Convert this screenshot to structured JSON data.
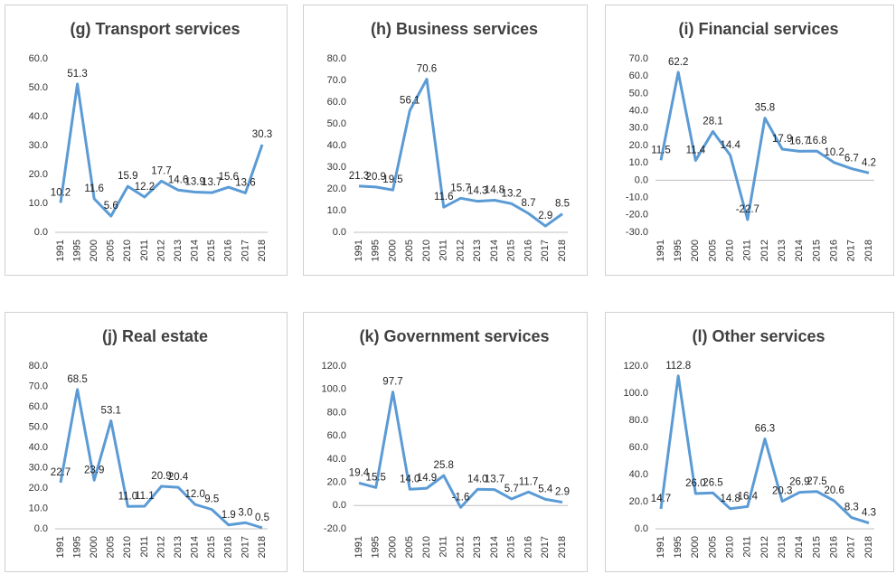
{
  "chart_data": [
    {
      "type": "line",
      "title": "(g) Transport services",
      "categories": [
        "1991",
        "1995",
        "2000",
        "2005",
        "2010",
        "2011",
        "2012",
        "2013",
        "2014",
        "2015",
        "2016",
        "2017",
        "2018"
      ],
      "values": [
        10.2,
        51.3,
        11.6,
        5.6,
        15.9,
        12.2,
        17.7,
        14.6,
        13.9,
        13.7,
        15.6,
        13.6,
        30.3
      ],
      "color": "#5b9bd5",
      "grid": false,
      "ylim": [
        0,
        60
      ],
      "yticks": [
        {
          "value": 0,
          "label": "0.0"
        },
        {
          "value": 10,
          "label": "10.0"
        },
        {
          "value": 20,
          "label": "20.0"
        },
        {
          "value": 30,
          "label": "30.0"
        },
        {
          "value": 40,
          "label": "40.0"
        },
        {
          "value": 50,
          "label": "50.0"
        },
        {
          "value": 60,
          "label": "60.0"
        }
      ]
    },
    {
      "type": "line",
      "title": "(h) Business services",
      "categories": [
        "1991",
        "1995",
        "2000",
        "2005",
        "2010",
        "2011",
        "2012",
        "2013",
        "2014",
        "2015",
        "2016",
        "2017",
        "2018"
      ],
      "values": [
        21.3,
        20.9,
        19.5,
        56.1,
        70.6,
        11.6,
        15.7,
        14.3,
        14.8,
        13.2,
        8.7,
        2.9,
        8.5
      ],
      "color": "#5b9bd5",
      "grid": false,
      "ylim": [
        0,
        80
      ],
      "yticks": [
        {
          "value": 0,
          "label": "0.0"
        },
        {
          "value": 10,
          "label": "10.0"
        },
        {
          "value": 20,
          "label": "20.0"
        },
        {
          "value": 30,
          "label": "30.0"
        },
        {
          "value": 40,
          "label": "40.0"
        },
        {
          "value": 50,
          "label": "50.0"
        },
        {
          "value": 60,
          "label": "60.0"
        },
        {
          "value": 70,
          "label": "70.0"
        },
        {
          "value": 80,
          "label": "80.0"
        }
      ]
    },
    {
      "type": "line",
      "title": "(i) Financial services",
      "categories": [
        "1991",
        "1995",
        "2000",
        "2005",
        "2010",
        "2011",
        "2012",
        "2013",
        "2014",
        "2015",
        "2016",
        "2017",
        "2018"
      ],
      "values": [
        11.5,
        62.2,
        11.4,
        28.1,
        14.4,
        -22.7,
        35.8,
        17.9,
        16.7,
        16.8,
        10.2,
        6.7,
        4.2
      ],
      "color": "#5b9bd5",
      "grid": false,
      "ylim": [
        -30,
        70
      ],
      "yticks": [
        {
          "value": -30,
          "label": "-30.0"
        },
        {
          "value": -20,
          "label": "-20.0"
        },
        {
          "value": -10,
          "label": "-10.0"
        },
        {
          "value": 0,
          "label": "0.0"
        },
        {
          "value": 10,
          "label": "10.0"
        },
        {
          "value": 20,
          "label": "20.0"
        },
        {
          "value": 30,
          "label": "30.0"
        },
        {
          "value": 40,
          "label": "40.0"
        },
        {
          "value": 50,
          "label": "50.0"
        },
        {
          "value": 60,
          "label": "60.0"
        },
        {
          "value": 70,
          "label": "70.0"
        }
      ]
    },
    {
      "type": "line",
      "title": "(j) Real estate",
      "categories": [
        "1991",
        "1995",
        "2000",
        "2005",
        "2010",
        "2011",
        "2012",
        "2013",
        "2014",
        "2015",
        "2016",
        "2017",
        "2018"
      ],
      "values": [
        22.7,
        68.5,
        23.9,
        53.1,
        11.0,
        11.1,
        20.9,
        20.4,
        12.0,
        9.5,
        1.9,
        3.0,
        0.5
      ],
      "value_labels": [
        "22.7",
        "68.5",
        "23.9",
        "53.1",
        "11.0",
        "11.1",
        "20.9",
        "20.4",
        "12.0",
        "9.5",
        "1.9",
        "3.0",
        "0.5"
      ],
      "color": "#5b9bd5",
      "grid": false,
      "ylim": [
        0,
        80
      ],
      "yticks": [
        {
          "value": 0,
          "label": "0.0"
        },
        {
          "value": 10,
          "label": "10.0"
        },
        {
          "value": 20,
          "label": "20.0"
        },
        {
          "value": 30,
          "label": "30.0"
        },
        {
          "value": 40,
          "label": "40.0"
        },
        {
          "value": 50,
          "label": "50.0"
        },
        {
          "value": 60,
          "label": "60.0"
        },
        {
          "value": 70,
          "label": "70.0"
        },
        {
          "value": 80,
          "label": "80.0"
        }
      ]
    },
    {
      "type": "line",
      "title": "(k) Government services",
      "categories": [
        "1991",
        "1995",
        "2000",
        "2005",
        "2010",
        "2011",
        "2012",
        "2013",
        "2014",
        "2015",
        "2016",
        "2017",
        "2018"
      ],
      "values": [
        19.4,
        15.5,
        97.7,
        14.0,
        14.9,
        25.8,
        -1.6,
        14.0,
        13.7,
        5.7,
        11.7,
        5.4,
        2.9
      ],
      "value_labels": [
        "19.4",
        "15.5",
        "97.7",
        "14.0",
        "14.9",
        "25.8",
        "-1.6",
        "14.0",
        "13.7",
        "5.7",
        "11.7",
        "5.4",
        "2.9"
      ],
      "color": "#5b9bd5",
      "grid": false,
      "ylim": [
        -20,
        120
      ],
      "yticks": [
        {
          "value": -20,
          "label": "-20.0"
        },
        {
          "value": 0,
          "label": "0.0"
        },
        {
          "value": 20,
          "label": "20.0"
        },
        {
          "value": 40,
          "label": "40.0"
        },
        {
          "value": 60,
          "label": "60.0"
        },
        {
          "value": 80,
          "label": "80.0"
        },
        {
          "value": 100,
          "label": "100.0"
        },
        {
          "value": 120,
          "label": "120.0"
        }
      ]
    },
    {
      "type": "line",
      "title": "(l) Other services",
      "categories": [
        "1991",
        "1995",
        "2000",
        "2005",
        "2010",
        "2011",
        "2012",
        "2013",
        "2014",
        "2015",
        "2016",
        "2017",
        "2018"
      ],
      "values": [
        14.7,
        112.8,
        26.0,
        26.5,
        14.8,
        16.4,
        66.3,
        20.3,
        26.9,
        27.5,
        20.6,
        8.3,
        4.3
      ],
      "value_labels": [
        "14.7",
        "112.8",
        "26.0",
        "26.5",
        "14.8",
        "16.4",
        "66.3",
        "20.3",
        "26.9",
        "27.5",
        "20.6",
        "8.3",
        "4.3"
      ],
      "color": "#5b9bd5",
      "grid": false,
      "ylim": [
        0,
        120
      ],
      "yticks": [
        {
          "value": 0,
          "label": "0.0"
        },
        {
          "value": 20,
          "label": "20.0"
        },
        {
          "value": 40,
          "label": "40.0"
        },
        {
          "value": 60,
          "label": "60.0"
        },
        {
          "value": 80,
          "label": "80.0"
        },
        {
          "value": 100,
          "label": "100.0"
        },
        {
          "value": 120,
          "label": "120.0"
        }
      ]
    }
  ]
}
